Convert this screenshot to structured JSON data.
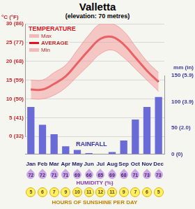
{
  "title": "Valletta",
  "subtitle": "(elevation: 70 metres)",
  "chart_data": [
    {
      "type": "line",
      "title": "TEMPERATURE",
      "y_label": "°C (°F)",
      "categories": [
        "Jan",
        "Feb",
        "Mar",
        "Apr",
        "May",
        "Jun",
        "Jul",
        "Aug",
        "Sep",
        "Oct",
        "Nov",
        "Dec"
      ],
      "series": [
        {
          "name": "Max",
          "color": "#f2a0a0",
          "values": [
            15,
            15,
            17,
            19,
            23,
            27,
            30,
            30,
            28,
            24,
            20,
            17
          ]
        },
        {
          "name": "AVERAGE",
          "color": "#e3121b",
          "values": [
            12.5,
            12.5,
            14,
            16,
            19.5,
            23,
            26,
            26.5,
            24.5,
            21,
            17.5,
            14.5
          ]
        },
        {
          "name": "Min",
          "color": "#f2a0a0",
          "values": [
            10,
            10,
            11,
            13,
            16,
            19,
            22,
            23,
            21,
            18,
            15,
            12
          ]
        }
      ],
      "ylim": [
        0,
        30
      ],
      "yticks": [
        {
          "value": 0,
          "label": "0 (32)"
        },
        {
          "value": 5,
          "label": "5 (41)"
        },
        {
          "value": 10,
          "label": "10 (50)"
        },
        {
          "value": 15,
          "label": "15 (59)"
        },
        {
          "value": 20,
          "label": "20 (68)"
        },
        {
          "value": 25,
          "label": "25 (77)"
        },
        {
          "value": 30,
          "label": "30 (86)"
        }
      ],
      "grid": true,
      "legend": "top left",
      "tick_labels": "y"
    },
    {
      "type": "bar",
      "title": "RAINFALL",
      "y_label": "mm (in)",
      "categories": [
        "Jan",
        "Feb",
        "Mar",
        "Apr",
        "May",
        "Jun",
        "Jul",
        "Aug",
        "Sep",
        "Oct",
        "Nov",
        "Dec"
      ],
      "values": [
        90,
        56,
        38,
        15,
        8,
        2,
        0,
        4,
        26,
        66,
        90,
        109
      ],
      "color": "#6b6bd8",
      "ylim": [
        0,
        150
      ],
      "yticks": [
        {
          "value": 0,
          "label": "0 (0)"
        },
        {
          "value": 50,
          "label": "50 (2.0)"
        },
        {
          "value": 100,
          "label": "100 (3.9)"
        },
        {
          "value": 150,
          "label": "150 (5.9)"
        }
      ],
      "grid": false
    }
  ],
  "humidity": {
    "label": "HUMIDITY (%)",
    "values": [
      72,
      72,
      71,
      71,
      69,
      66,
      65,
      69,
      68,
      71,
      73,
      73
    ]
  },
  "sunshine": {
    "label": "HOURS OF SUNSHINE PER DAY",
    "values": [
      5,
      6,
      7,
      9,
      10,
      11,
      12,
      11,
      9,
      7,
      6,
      5
    ]
  }
}
